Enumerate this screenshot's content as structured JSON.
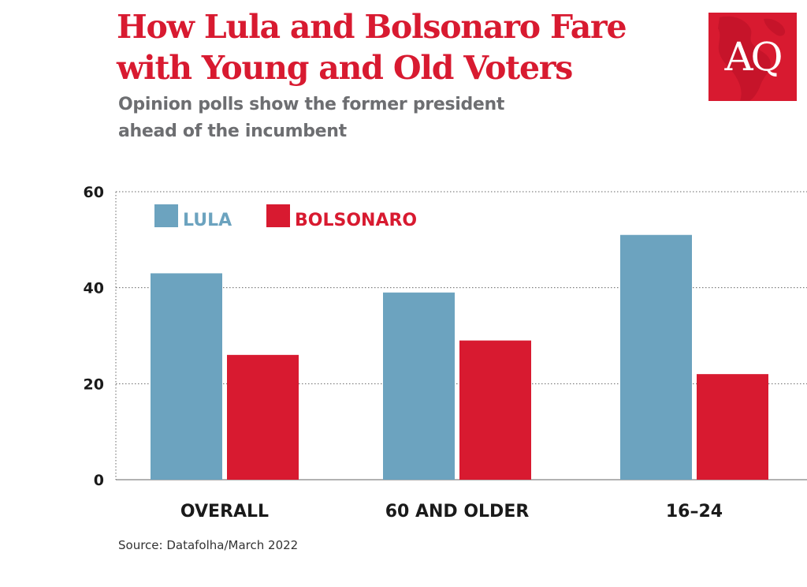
{
  "header": {
    "title": "How Lula and Bolsonaro Fare\nwith Young and Old Voters",
    "subtitle": "Opinion polls show the former president\nahead of the incumbent"
  },
  "logo": {
    "text": "AQ",
    "icon": "americas-map-icon"
  },
  "footer": {
    "source": "Source: Datafolha/March 2022"
  },
  "chart_data": {
    "type": "bar",
    "title": "How Lula and Bolsonaro Fare with Young and Old Voters",
    "subtitle": "Opinion polls show the former president ahead of the incumbent",
    "xlabel": "",
    "ylabel": "",
    "categories": [
      "OVERALL",
      "60 AND OLDER",
      "16–24"
    ],
    "series": [
      {
        "name": "LULA",
        "color": "#6ca3bf",
        "values": [
          43,
          39,
          51
        ]
      },
      {
        "name": "BOLSONARO",
        "color": "#d81a30",
        "values": [
          26,
          29,
          22
        ]
      }
    ],
    "ylim": [
      0,
      60
    ],
    "yticks": [
      0,
      20,
      40,
      60
    ],
    "grid": true,
    "legend": "top-left"
  }
}
